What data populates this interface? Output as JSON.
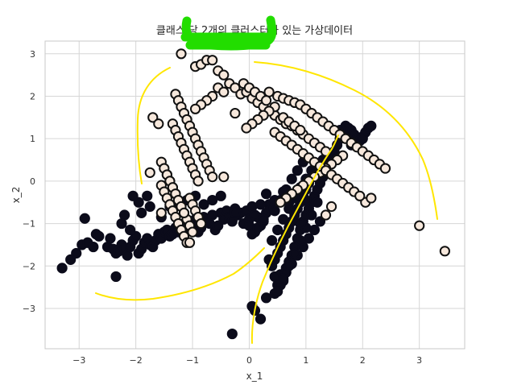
{
  "chart_data": {
    "type": "scatter",
    "title": "클래스 당 2개의 클러스터가 있는 가상데이터",
    "xlabel": "x_1",
    "ylabel": "x_2",
    "xlim": [
      -3.6,
      3.8
    ],
    "ylim": [
      -3.95,
      3.3
    ],
    "xticks": [
      -3,
      -2,
      -1,
      0,
      1,
      2,
      3
    ],
    "yticks": [
      -3,
      -2,
      -1,
      0,
      1,
      2,
      3
    ],
    "grid": true,
    "colors": {
      "class0_fill": "#0b0b1a",
      "class0_edge": "#0b0b1a",
      "class1_fill": "#f7e8dc",
      "class1_edge": "#111111",
      "grid": "#d6d6d6",
      "frame": "#c8c8c8",
      "annotation_yellow": "#ffe600",
      "annotation_green": "#22dd00"
    },
    "series": [
      {
        "x": [
          -3.3,
          -3.15,
          -3.05,
          -2.95,
          -2.85,
          -2.75,
          -2.7,
          -2.65,
          -2.9,
          -2.5,
          -2.45,
          -2.4,
          -2.35,
          -2.3,
          -2.25,
          -2.2,
          -2.15,
          -2.1,
          -2.05,
          -2.0,
          -1.95,
          -1.9,
          -1.85,
          -1.8,
          -1.75,
          -1.7,
          -1.65,
          -1.6,
          -1.55,
          -1.5,
          -1.45,
          -1.4,
          -1.35,
          -1.3,
          -1.25,
          -1.2,
          -1.15,
          -1.1,
          -1.05,
          -1.0,
          -0.95,
          -0.9,
          -0.85,
          -0.8,
          -0.75,
          -0.7,
          -0.65,
          -0.6,
          -0.55,
          -0.5,
          -0.45,
          -0.4,
          -0.35,
          -0.3,
          -0.25,
          -0.2,
          -0.15,
          -0.1,
          -0.05,
          0.0,
          0.05,
          0.1,
          0.15,
          0.2,
          0.25,
          0.3,
          0.35,
          0.4,
          0.45,
          -2.35,
          -1.9,
          -1.8,
          -1.95,
          -2.05,
          -1.55,
          -1.4,
          -1.25,
          -1.1,
          -0.95,
          -0.8,
          -0.65,
          -0.5,
          -2.1,
          -2.25,
          -2.2,
          -1.75,
          -0.3,
          0.05,
          0.1,
          0.2,
          0.3,
          0.45,
          0.5,
          0.55,
          0.6,
          0.65,
          0.7,
          0.75,
          0.8,
          0.85,
          0.9,
          0.95,
          1.0,
          1.05,
          1.1,
          1.15,
          1.2,
          1.25,
          1.3,
          1.35,
          1.4,
          1.45,
          1.5,
          1.55,
          1.6,
          1.65,
          1.7,
          1.75,
          1.8,
          1.85,
          1.9,
          1.95,
          2.0,
          2.05,
          2.1,
          2.15,
          0.4,
          0.45,
          0.5,
          0.55,
          0.6,
          0.65,
          0.7,
          0.75,
          0.8,
          0.85,
          0.9,
          0.95,
          1.0,
          1.05,
          1.1,
          1.15,
          1.2,
          1.25,
          1.3,
          0.35,
          0.45,
          0.55,
          0.65,
          0.75,
          0.85,
          0.95,
          1.05,
          1.15,
          1.25,
          0.5,
          0.6,
          0.7,
          0.8,
          0.9,
          1.0,
          1.1,
          1.2,
          0.4,
          0.5,
          0.6,
          0.7,
          0.8,
          0.9,
          1.0,
          1.1,
          0.45,
          0.55,
          0.65,
          0.75,
          0.85,
          0.95,
          0.0,
          0.1,
          0.2,
          0.3,
          -0.25,
          0.25,
          0.05,
          0.15,
          0.6,
          0.7,
          0.8,
          0.9,
          1.0,
          1.2,
          1.4,
          1.6,
          1.8,
          2.0
        ],
        "y": [
          -2.05,
          -1.85,
          -1.7,
          -1.5,
          -1.45,
          -1.55,
          -1.25,
          -1.3,
          -0.88,
          -1.55,
          -1.35,
          -1.6,
          -1.7,
          -1.65,
          -1.5,
          -1.6,
          -1.75,
          -1.55,
          -1.4,
          -1.3,
          -1.7,
          -1.6,
          -1.45,
          -1.35,
          -1.5,
          -1.55,
          -1.4,
          -1.25,
          -1.35,
          -1.2,
          -1.15,
          -1.3,
          -1.25,
          -1.1,
          -1.2,
          -1.05,
          -1.0,
          -1.15,
          -0.95,
          -1.05,
          -0.9,
          -1.2,
          -1.1,
          -0.85,
          -0.95,
          -1.0,
          -0.8,
          -1.15,
          -1.05,
          -0.75,
          -0.9,
          -0.7,
          -0.85,
          -0.95,
          -0.65,
          -0.8,
          -0.75,
          -1.0,
          -0.7,
          -0.9,
          -0.6,
          -1.2,
          -0.85,
          -1.05,
          -0.95,
          -0.75,
          -0.55,
          -0.65,
          -0.45,
          -2.25,
          -0.75,
          -0.35,
          -0.5,
          -0.35,
          -0.85,
          -0.6,
          -0.55,
          -0.45,
          -0.35,
          -0.55,
          -0.45,
          -0.35,
          -1.15,
          -1.0,
          -0.8,
          -0.6,
          -3.6,
          -2.95,
          -3.05,
          -3.25,
          -2.75,
          -2.65,
          -2.45,
          -2.2,
          -2.35,
          -2.05,
          -1.9,
          -1.75,
          -1.55,
          -1.35,
          -1.15,
          -0.95,
          -0.8,
          -0.65,
          -0.5,
          -0.35,
          -0.2,
          -0.05,
          0.1,
          0.25,
          0.4,
          0.55,
          0.7,
          0.85,
          1.0,
          1.15,
          1.3,
          1.25,
          1.2,
          1.1,
          1.0,
          0.95,
          1.05,
          1.15,
          1.25,
          1.3,
          -2.0,
          -1.85,
          -1.7,
          -1.55,
          -1.4,
          -1.25,
          -1.1,
          -0.95,
          -0.8,
          -0.65,
          -0.5,
          -0.35,
          -0.2,
          -0.05,
          0.1,
          0.2,
          0.3,
          0.4,
          0.5,
          -1.85,
          -2.25,
          -2.45,
          -2.15,
          -1.95,
          -1.75,
          -1.55,
          -1.35,
          -1.15,
          -0.95,
          -2.6,
          -2.3,
          -2.0,
          -1.7,
          -1.4,
          -1.1,
          -0.8,
          -0.5,
          -1.4,
          -1.15,
          -0.9,
          -0.65,
          -0.4,
          -0.15,
          0.05,
          0.25,
          -0.7,
          -0.45,
          -0.2,
          0.05,
          0.25,
          0.45,
          -1.05,
          -0.8,
          -0.55,
          -0.3,
          -0.75,
          -0.9,
          -1.25,
          -1.1,
          -0.25,
          -0.5,
          -0.75,
          -1.0,
          -0.45,
          0.15,
          0.6,
          1.2,
          0.85,
          1.0
        ]
      },
      {
        "x": [
          -1.2,
          -0.95,
          -0.85,
          -0.75,
          -0.65,
          -0.55,
          -0.45,
          -0.35,
          -0.25,
          -0.15,
          -0.05,
          0.05,
          0.15,
          0.25,
          0.35,
          0.45,
          0.55,
          0.65,
          0.75,
          0.85,
          0.95,
          1.05,
          1.15,
          1.25,
          1.35,
          -1.3,
          -1.25,
          -1.2,
          -1.15,
          -1.1,
          -1.05,
          -1.0,
          -0.95,
          -0.9,
          -0.85,
          -0.8,
          -0.75,
          -0.7,
          -0.65,
          -1.35,
          -1.3,
          -1.25,
          -1.2,
          -1.15,
          -1.1,
          -1.05,
          -1.0,
          -0.95,
          -0.9,
          -1.45,
          -1.4,
          -1.35,
          -1.3,
          -1.25,
          -1.2,
          -1.15,
          -1.1,
          -1.05,
          -1.0,
          -1.55,
          -1.5,
          -1.45,
          -1.4,
          -1.35,
          -1.3,
          -1.25,
          -1.2,
          -1.15,
          -1.7,
          -1.6,
          -1.55,
          -1.5,
          -1.45,
          -1.4,
          -1.35,
          -1.3,
          -1.25,
          -1.2,
          -1.15,
          -1.1,
          -1.05,
          -1.0,
          -0.95,
          -0.9,
          -0.85,
          -0.45,
          -0.25,
          -1.75,
          -1.55,
          -1.05,
          0.35,
          0.5,
          0.6,
          0.7,
          0.8,
          0.9,
          1.0,
          1.1,
          1.2,
          1.3,
          1.4,
          1.5,
          1.6,
          1.7,
          1.8,
          1.9,
          2.0,
          2.1,
          2.2,
          2.3,
          2.4,
          2.05,
          2.15,
          1.65,
          1.55,
          1.45,
          1.35,
          1.25,
          1.15,
          1.05,
          0.95,
          0.85,
          0.75,
          0.65,
          0.55,
          0.45,
          0.35,
          0.25,
          0.15,
          0.05,
          -0.05,
          0.45,
          0.55,
          0.65,
          0.75,
          0.85,
          0.95,
          1.05,
          1.15,
          1.25,
          1.35,
          1.45,
          1.55,
          1.65,
          1.75,
          1.85,
          1.95,
          3.0,
          3.45,
          1.35,
          1.45,
          0.6,
          0.7,
          0.8,
          0.9,
          -0.1,
          0.0,
          0.1,
          0.2,
          0.3,
          -0.55,
          -0.45,
          -0.65,
          -0.75,
          -0.85,
          -0.95
        ],
        "y": [
          3.0,
          2.7,
          2.75,
          2.85,
          2.85,
          2.6,
          2.5,
          2.3,
          2.2,
          2.05,
          2.1,
          1.95,
          1.85,
          1.75,
          1.65,
          1.55,
          1.45,
          1.35,
          1.3,
          1.2,
          1.1,
          1.0,
          0.9,
          0.8,
          0.7,
          2.05,
          1.9,
          1.75,
          1.6,
          1.45,
          1.3,
          1.15,
          1.0,
          0.85,
          0.7,
          0.55,
          0.4,
          0.25,
          0.1,
          1.35,
          1.2,
          1.05,
          0.9,
          0.75,
          0.6,
          0.45,
          0.3,
          0.15,
          0.0,
          0.15,
          0.0,
          -0.15,
          -0.3,
          -0.45,
          -0.6,
          -0.75,
          -0.9,
          -1.05,
          -1.2,
          0.45,
          0.3,
          0.15,
          0.0,
          -0.15,
          -0.3,
          -0.45,
          -0.6,
          -0.75,
          1.5,
          1.35,
          -0.1,
          -0.25,
          -0.4,
          -0.55,
          -0.7,
          -0.85,
          -1.0,
          -1.15,
          -1.3,
          -1.45,
          -0.4,
          -0.55,
          -0.7,
          -0.85,
          -1.0,
          0.1,
          1.6,
          0.2,
          -0.75,
          -1.45,
          2.1,
          2.0,
          1.95,
          1.9,
          1.85,
          1.8,
          1.7,
          1.6,
          1.5,
          1.4,
          1.3,
          1.2,
          1.1,
          1.0,
          0.9,
          0.8,
          0.7,
          0.6,
          0.5,
          0.4,
          0.3,
          -0.5,
          -0.4,
          0.6,
          0.5,
          0.4,
          0.3,
          0.2,
          0.1,
          0.0,
          -0.1,
          -0.2,
          -0.3,
          -0.4,
          -0.5,
          1.75,
          1.65,
          1.55,
          1.45,
          1.35,
          1.25,
          1.15,
          1.05,
          0.95,
          0.85,
          0.75,
          0.65,
          0.55,
          0.45,
          0.35,
          0.25,
          0.15,
          0.05,
          -0.05,
          -0.15,
          -0.25,
          -0.35,
          -1.05,
          -1.65,
          -0.8,
          -0.6,
          1.5,
          1.4,
          1.3,
          1.2,
          2.3,
          2.2,
          2.1,
          2.0,
          1.9,
          2.2,
          2.1,
          2.0,
          1.9,
          1.8,
          1.7
        ]
      }
    ]
  }
}
